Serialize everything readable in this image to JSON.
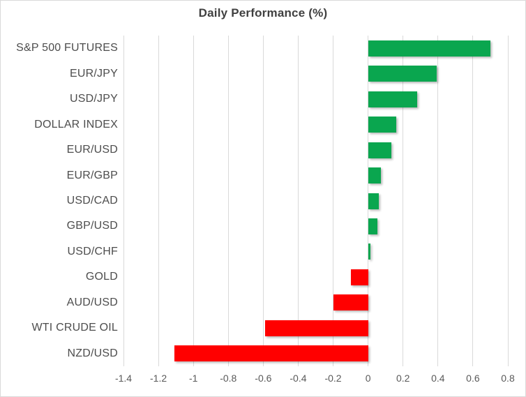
{
  "chart_data": {
    "type": "bar",
    "orientation": "horizontal",
    "title": "Daily Performance (%)",
    "categories": [
      "S&P 500 FUTURES",
      "EUR/JPY",
      "USD/JPY",
      "DOLLAR INDEX",
      "EUR/USD",
      "EUR/GBP",
      "USD/CAD",
      "GBP/USD",
      "USD/CHF",
      "GOLD",
      "AUD/USD",
      "WTI CRUDE OIL",
      "NZD/USD"
    ],
    "values": [
      0.7,
      0.39,
      0.28,
      0.16,
      0.13,
      0.07,
      0.06,
      0.05,
      0.01,
      -0.1,
      -0.2,
      -0.59,
      -1.11
    ],
    "xlabel": "",
    "ylabel": "",
    "xlim": [
      -1.4,
      0.8
    ],
    "x_ticks": [
      -1.4,
      -1.2,
      -1.0,
      -0.8,
      -0.6,
      -0.4,
      -0.2,
      0,
      0.2,
      0.4,
      0.6,
      0.8
    ],
    "x_tick_labels": [
      "-1.4",
      "-1.2",
      "-1",
      "-0.8",
      "-0.6",
      "-0.4",
      "-0.2",
      "0",
      "0.2",
      "0.4",
      "0.6",
      "0.8"
    ],
    "grid": "vertical-only",
    "legend": "none",
    "colors": {
      "positive": "#0aa64f",
      "negative": "#ff0000",
      "gridline": "#d9d9d9",
      "title_text": "#404040",
      "category_text": "#4d4d4d",
      "axis_text": "#595959",
      "background": "#ffffff"
    }
  }
}
